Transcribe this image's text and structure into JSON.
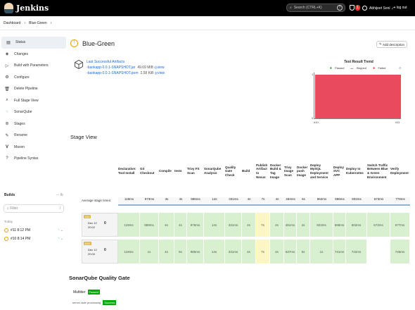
{
  "topbar": {
    "brand": "Jenkins",
    "search_placeholder": "Search (CTRL+K)",
    "notif_count": "1",
    "user": "Abhijeet Soni",
    "logout": "log out"
  },
  "breadcrumb": [
    "Dashboard",
    "Blue-Green"
  ],
  "sidebar": [
    {
      "label": "Status",
      "icon": "status-icon",
      "active": true
    },
    {
      "label": "Changes",
      "icon": "changes-icon"
    },
    {
      "label": "Build with Parameters",
      "icon": "build-icon"
    },
    {
      "label": "Configure",
      "icon": "gear-icon"
    },
    {
      "label": "Delete Pipeline",
      "icon": "trash-icon"
    },
    {
      "label": "Full Stage View",
      "icon": "search-icon"
    },
    {
      "label": "SonarQube",
      "icon": "sonarqube-icon"
    },
    {
      "label": "Stages",
      "icon": "stages-icon"
    },
    {
      "label": "Rename",
      "icon": "rename-icon"
    },
    {
      "label": "Maven",
      "icon": "maven-icon"
    },
    {
      "label": "Pipeline Syntax",
      "icon": "help-icon"
    }
  ],
  "builds": {
    "title": "Builds",
    "filter": "Filter",
    "today": "Today",
    "items": [
      {
        "label": "#11 8:12 PM"
      },
      {
        "label": "#10 8:14 PM"
      }
    ]
  },
  "page": {
    "title": "Blue-Green",
    "add_desc": "Add description",
    "artifacts_label": "Last Successful Artifacts",
    "artifacts": [
      {
        "name": "bankapp-0.0.1-SNAPSHOT.jar",
        "size": "49.69 MiB",
        "view": "view"
      },
      {
        "name": "bankapp-0.0.1-SNAPSHOT.pom",
        "size": "2.58 KiB",
        "view": "view"
      }
    ]
  },
  "trend": {
    "title": "Test Result Trend",
    "legend": [
      "Passed",
      "Skipped",
      "Failed"
    ],
    "x_labels": [
      "#10",
      "#11"
    ],
    "y_labels": [
      "1",
      "0"
    ]
  },
  "stage_view": {
    "title": "Stage View",
    "avg_label": "Average stage times:",
    "stages": [
      "Declarative: Tool Install",
      "Git Checkout",
      "Compile",
      "tests",
      "Trivy FS Scan",
      "SonarQube Analysis",
      "Quality Gate Check",
      "Build",
      "Publish Artifact to Nexus",
      "Docker Build & Tag Image",
      "Trivy Image Scan",
      "Docker push Image",
      "Deploy MySQL Deployment and Service",
      "Deploy SVC APP",
      "Deploy to Kubernetes",
      "Switch Traffic Between Blue & Green Environment",
      "Verify Deployment"
    ],
    "avg": [
      "119ms",
      "973ms",
      "3s",
      "4s",
      "986ms",
      "14s",
      "331ms",
      "4s",
      "7s",
      "4s",
      "484ms",
      "6s",
      "962ms",
      "696ms",
      "602ms",
      "673ms",
      "778ms"
    ],
    "runs": [
      {
        "num": "0",
        "date": "Dec 12",
        "time": "20:02",
        "tag": "#11",
        "cells": [
          "119ms",
          "889ms",
          "4s",
          "4s",
          "976ms",
          "14s",
          "331ms",
          "4s",
          "7s",
          "4s",
          "481ms",
          "4s",
          "923ms",
          "698ms",
          "602ms",
          "673ms",
          "677ms"
        ]
      },
      {
        "num": "0",
        "date": "Dec 12",
        "time": "20:00",
        "tag": "#10",
        "cells": [
          "119ms",
          "1s",
          "4s",
          "5s",
          "985ms",
          "14s",
          "331ms",
          "4s",
          "7s",
          "4s",
          "537ms",
          "5s",
          "1s",
          "741ms",
          "722ms",
          "",
          "746ms"
        ]
      }
    ]
  },
  "sonar": {
    "title": "SonarQube Quality Gate",
    "project": "Multitier",
    "status": "Passed",
    "sub": "server-side processing",
    "sub_status": "Success"
  },
  "colors": {
    "failed": "#ea4a5d",
    "passed": "#00aa00",
    "inprogress": "#e89b16"
  }
}
